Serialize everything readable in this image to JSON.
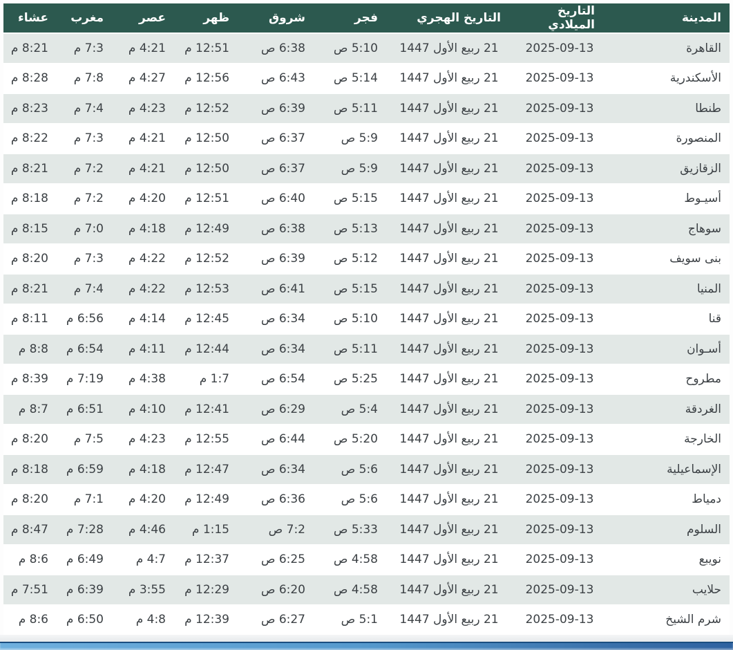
{
  "colors": {
    "header_bg": "#2c594f",
    "header_text": "#ffffff",
    "row_alt_bg": "#e2e8e6",
    "row_bg": "#ffffff",
    "cell_text": "#3c4145",
    "scrollbar_blue": "#4f92c8"
  },
  "table": {
    "columns": [
      {
        "key": "city",
        "label": "المدينة"
      },
      {
        "key": "gregorian",
        "label": "التاريخ الميلادي"
      },
      {
        "key": "hijri",
        "label": "التاريخ الهجري"
      },
      {
        "key": "fajr",
        "label": "فجر"
      },
      {
        "key": "sunrise",
        "label": "شروق"
      },
      {
        "key": "dhuhr",
        "label": "ظهر"
      },
      {
        "key": "asr",
        "label": "عصر"
      },
      {
        "key": "maghrib",
        "label": "مغرب"
      },
      {
        "key": "isha",
        "label": "عشاء"
      }
    ],
    "rows": [
      {
        "city": "القاهرة",
        "gregorian": "2025-09-13",
        "hijri": "21 ربيع الأول 1447",
        "fajr": "5:10 ص",
        "sunrise": "6:38 ص",
        "dhuhr": "12:51 م",
        "asr": "4:21 م",
        "maghrib": "7:3 م",
        "isha": "8:21 م"
      },
      {
        "city": "الأسكندرية",
        "gregorian": "2025-09-13",
        "hijri": "21 ربيع الأول 1447",
        "fajr": "5:14 ص",
        "sunrise": "6:43 ص",
        "dhuhr": "12:56 م",
        "asr": "4:27 م",
        "maghrib": "7:8 م",
        "isha": "8:28 م"
      },
      {
        "city": "طنطا",
        "gregorian": "2025-09-13",
        "hijri": "21 ربيع الأول 1447",
        "fajr": "5:11 ص",
        "sunrise": "6:39 ص",
        "dhuhr": "12:52 م",
        "asr": "4:23 م",
        "maghrib": "7:4 م",
        "isha": "8:23 م"
      },
      {
        "city": "المنصورة",
        "gregorian": "2025-09-13",
        "hijri": "21 ربيع الأول 1447",
        "fajr": "5:9 ص",
        "sunrise": "6:37 ص",
        "dhuhr": "12:50 م",
        "asr": "4:21 م",
        "maghrib": "7:3 م",
        "isha": "8:22 م"
      },
      {
        "city": "الزقازيق",
        "gregorian": "2025-09-13",
        "hijri": "21 ربيع الأول 1447",
        "fajr": "5:9 ص",
        "sunrise": "6:37 ص",
        "dhuhr": "12:50 م",
        "asr": "4:21 م",
        "maghrib": "7:2 م",
        "isha": "8:21 م"
      },
      {
        "city": "أسيـوط",
        "gregorian": "2025-09-13",
        "hijri": "21 ربيع الأول 1447",
        "fajr": "5:15 ص",
        "sunrise": "6:40 ص",
        "dhuhr": "12:51 م",
        "asr": "4:20 م",
        "maghrib": "7:2 م",
        "isha": "8:18 م"
      },
      {
        "city": "سوهاج",
        "gregorian": "2025-09-13",
        "hijri": "21 ربيع الأول 1447",
        "fajr": "5:13 ص",
        "sunrise": "6:38 ص",
        "dhuhr": "12:49 م",
        "asr": "4:18 م",
        "maghrib": "7:0 م",
        "isha": "8:15 م"
      },
      {
        "city": "بنى سويف",
        "gregorian": "2025-09-13",
        "hijri": "21 ربيع الأول 1447",
        "fajr": "5:12 ص",
        "sunrise": "6:39 ص",
        "dhuhr": "12:52 م",
        "asr": "4:22 م",
        "maghrib": "7:3 م",
        "isha": "8:20 م"
      },
      {
        "city": "المنيا",
        "gregorian": "2025-09-13",
        "hijri": "21 ربيع الأول 1447",
        "fajr": "5:15 ص",
        "sunrise": "6:41 ص",
        "dhuhr": "12:53 م",
        "asr": "4:22 م",
        "maghrib": "7:4 م",
        "isha": "8:21 م"
      },
      {
        "city": "قنا",
        "gregorian": "2025-09-13",
        "hijri": "21 ربيع الأول 1447",
        "fajr": "5:10 ص",
        "sunrise": "6:34 ص",
        "dhuhr": "12:45 م",
        "asr": "4:14 م",
        "maghrib": "6:56 م",
        "isha": "8:11 م"
      },
      {
        "city": "أسـوان",
        "gregorian": "2025-09-13",
        "hijri": "21 ربيع الأول 1447",
        "fajr": "5:11 ص",
        "sunrise": "6:34 ص",
        "dhuhr": "12:44 م",
        "asr": "4:11 م",
        "maghrib": "6:54 م",
        "isha": "8:8 م"
      },
      {
        "city": "مطروح",
        "gregorian": "2025-09-13",
        "hijri": "21 ربيع الأول 1447",
        "fajr": "5:25 ص",
        "sunrise": "6:54 ص",
        "dhuhr": "1:7 م",
        "asr": "4:38 م",
        "maghrib": "7:19 م",
        "isha": "8:39 م"
      },
      {
        "city": "الغردقة",
        "gregorian": "2025-09-13",
        "hijri": "21 ربيع الأول 1447",
        "fajr": "5:4 ص",
        "sunrise": "6:29 ص",
        "dhuhr": "12:41 م",
        "asr": "4:10 م",
        "maghrib": "6:51 م",
        "isha": "8:7 م"
      },
      {
        "city": "الخارجة",
        "gregorian": "2025-09-13",
        "hijri": "21 ربيع الأول 1447",
        "fajr": "5:20 ص",
        "sunrise": "6:44 ص",
        "dhuhr": "12:55 م",
        "asr": "4:23 م",
        "maghrib": "7:5 م",
        "isha": "8:20 م"
      },
      {
        "city": "الإسماعيلية",
        "gregorian": "2025-09-13",
        "hijri": "21 ربيع الأول 1447",
        "fajr": "5:6 ص",
        "sunrise": "6:34 ص",
        "dhuhr": "12:47 م",
        "asr": "4:18 م",
        "maghrib": "6:59 م",
        "isha": "8:18 م"
      },
      {
        "city": "دمياط",
        "gregorian": "2025-09-13",
        "hijri": "21 ربيع الأول 1447",
        "fajr": "5:6 ص",
        "sunrise": "6:36 ص",
        "dhuhr": "12:49 م",
        "asr": "4:20 م",
        "maghrib": "7:1 م",
        "isha": "8:20 م"
      },
      {
        "city": "السلوم",
        "gregorian": "2025-09-13",
        "hijri": "21 ربيع الأول 1447",
        "fajr": "5:33 ص",
        "sunrise": "7:2 ص",
        "dhuhr": "1:15 م",
        "asr": "4:46 م",
        "maghrib": "7:28 م",
        "isha": "8:47 م"
      },
      {
        "city": "نويبع",
        "gregorian": "2025-09-13",
        "hijri": "21 ربيع الأول 1447",
        "fajr": "4:58 ص",
        "sunrise": "6:25 ص",
        "dhuhr": "12:37 م",
        "asr": "4:7 م",
        "maghrib": "6:49 م",
        "isha": "8:6 م"
      },
      {
        "city": "حلايب",
        "gregorian": "2025-09-13",
        "hijri": "21 ربيع الأول 1447",
        "fajr": "4:58 ص",
        "sunrise": "6:20 ص",
        "dhuhr": "12:29 م",
        "asr": "3:55 م",
        "maghrib": "6:39 م",
        "isha": "7:51 م"
      },
      {
        "city": "شرم الشيخ",
        "gregorian": "2025-09-13",
        "hijri": "21 ربيع الأول 1447",
        "fajr": "5:1 ص",
        "sunrise": "6:27 ص",
        "dhuhr": "12:39 م",
        "asr": "4:8 م",
        "maghrib": "6:50 م",
        "isha": "8:6 م"
      }
    ]
  }
}
